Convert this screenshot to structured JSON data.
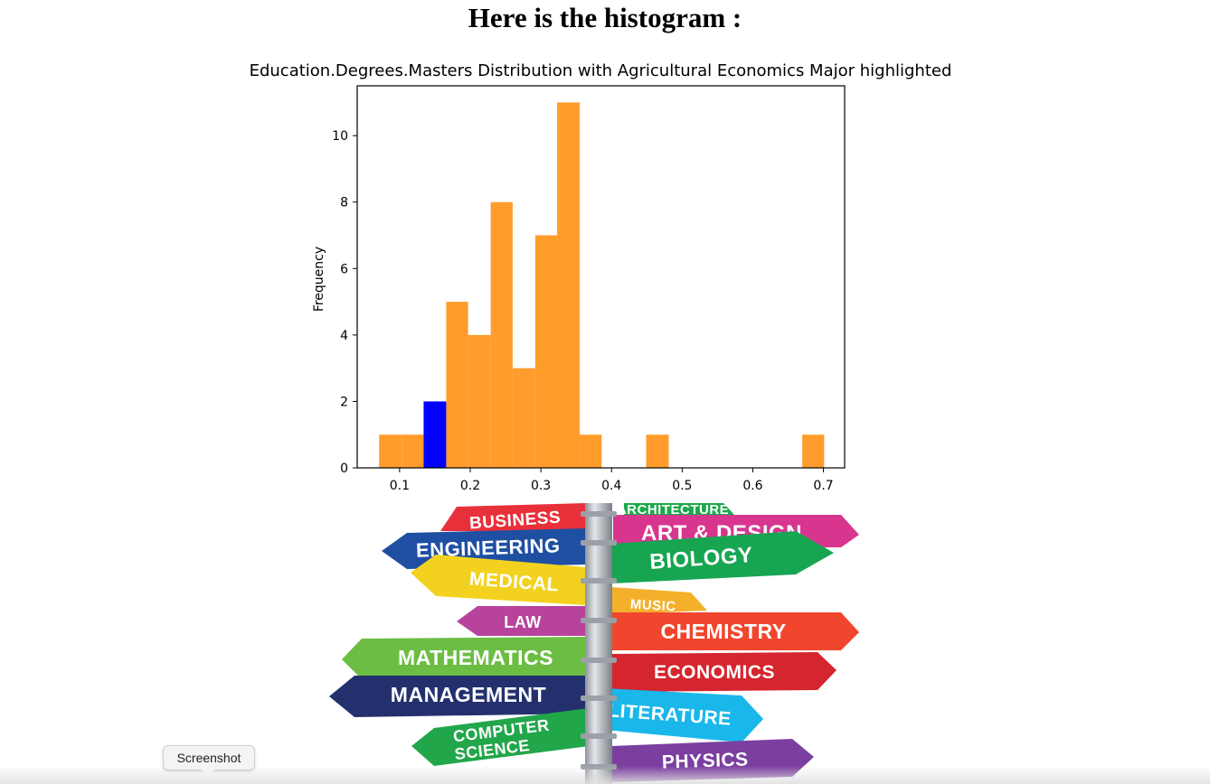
{
  "page": {
    "heading": "Here is the histogram :"
  },
  "chart_data": {
    "type": "bar",
    "title": "Education.Degrees.Masters Distribution with Agricultural Economics Major highlighted",
    "xlabel": "",
    "ylabel": "Frequency",
    "xlim": [
      0.04,
      0.73
    ],
    "ylim": [
      0,
      11.5
    ],
    "xticks": [
      "0.1",
      "0.2",
      "0.3",
      "0.4",
      "0.5",
      "0.6",
      "0.7"
    ],
    "yticks": [
      "0",
      "2",
      "4",
      "6",
      "8",
      "10"
    ],
    "bin_edges": [
      0.071,
      0.103,
      0.134,
      0.166,
      0.197,
      0.229,
      0.26,
      0.292,
      0.323,
      0.355,
      0.386,
      0.418,
      0.449,
      0.481,
      0.512,
      0.544,
      0.575,
      0.607,
      0.638,
      0.67,
      0.701
    ],
    "counts": [
      1,
      1,
      2,
      5,
      4,
      8,
      3,
      7,
      11,
      1,
      0,
      0,
      1,
      0,
      0,
      0,
      0,
      0,
      0,
      1
    ],
    "highlight_bin": 2,
    "colors": {
      "bar": "#ff9c2b",
      "highlight": "#0000ff"
    },
    "grid": false
  },
  "illustration": {
    "icon": "signpost-illustration",
    "signs": [
      "BUSINESS",
      "ARCHITECTURE",
      "ART & DESIGN",
      "ENGINEERING",
      "BIOLOGY",
      "MEDICAL",
      "MUSIC",
      "LAW",
      "CHEMISTRY",
      "MATHEMATICS",
      "ECONOMICS",
      "MANAGEMENT",
      "LITERATURE",
      "COMPUTER",
      "SCIENCE",
      "PHYSICS"
    ]
  },
  "tooltip": {
    "label": "Screenshot"
  }
}
